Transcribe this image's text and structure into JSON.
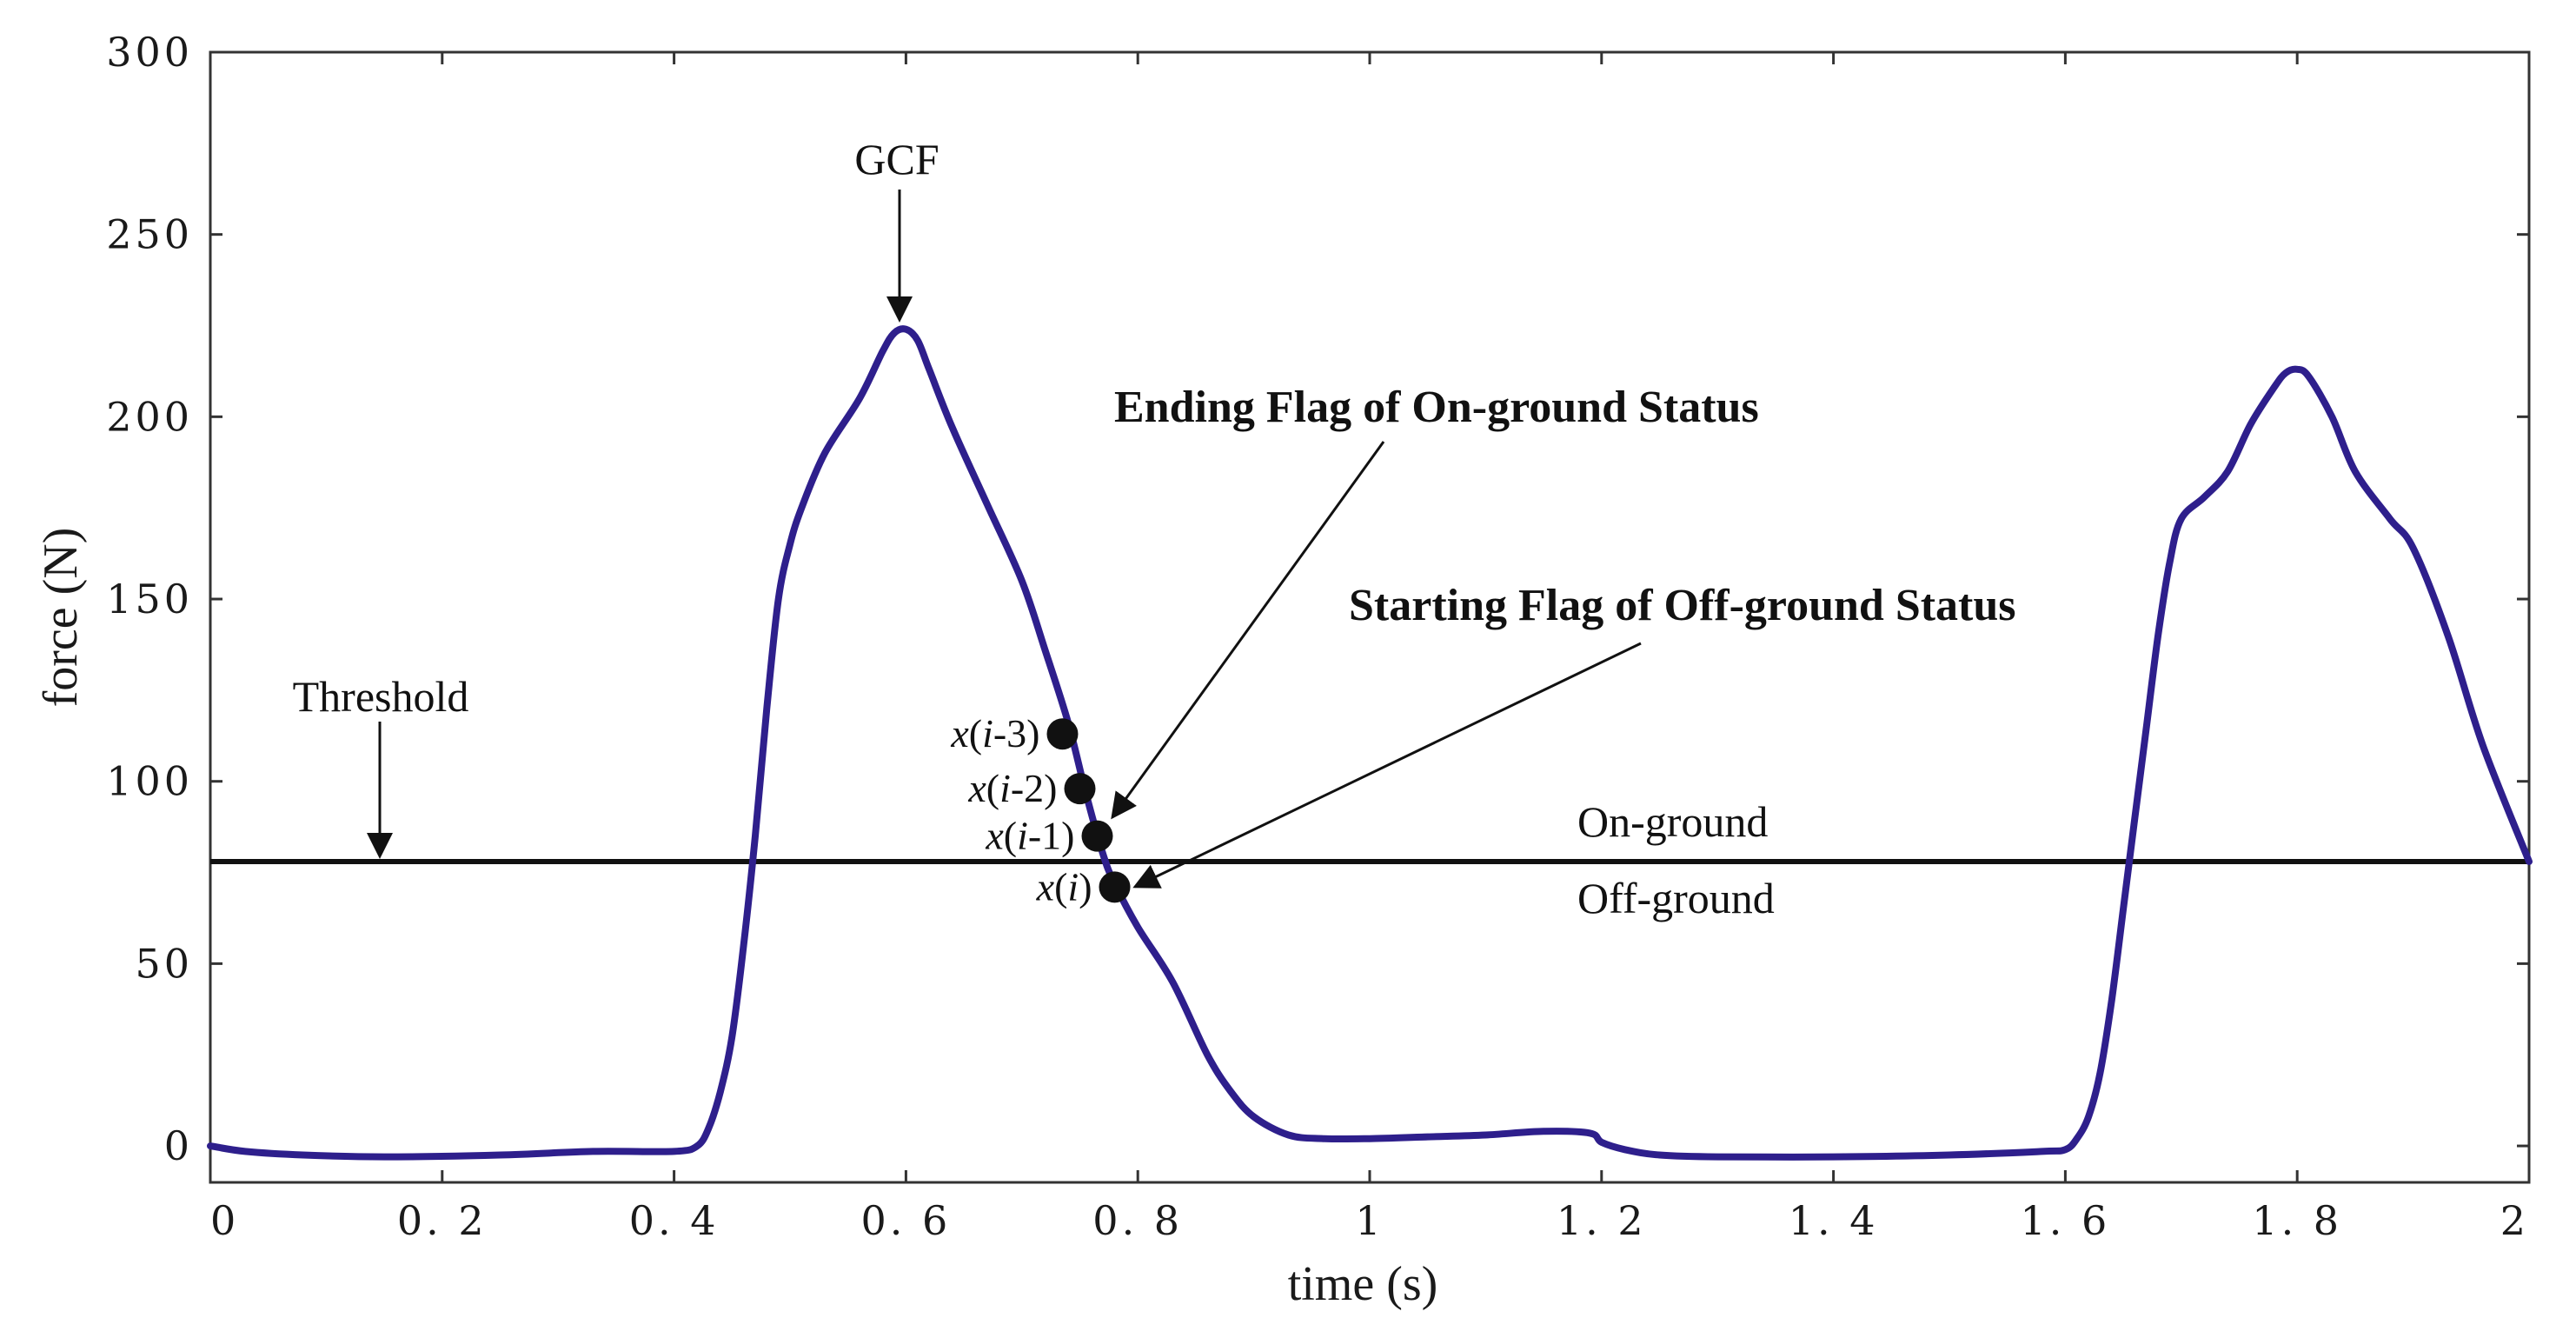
{
  "chart_data": {
    "type": "line",
    "title": "",
    "xlabel": "time (s)",
    "ylabel": "force (N)",
    "xlim": [
      0,
      2
    ],
    "ylim": [
      -10,
      300
    ],
    "xticks": [
      0,
      0.2,
      0.4,
      0.6,
      0.8,
      1,
      1.2,
      1.4,
      1.6,
      1.8,
      2
    ],
    "xtick_labels": [
      "0",
      "0. 2",
      "0. 4",
      "0. 6",
      "0. 8",
      "1",
      "1. 2",
      "1. 4",
      "1. 6",
      "1. 8",
      "2"
    ],
    "yticks": [
      0,
      50,
      100,
      150,
      200,
      250,
      300
    ],
    "ytick_labels": [
      "0",
      "50",
      "100",
      "150",
      "200",
      "250",
      "300"
    ],
    "grid": false,
    "series": [
      {
        "name": "GCF",
        "color": "#2e1f8c",
        "x": [
          0,
          0.03,
          0.08,
          0.15,
          0.25,
          0.33,
          0.4,
          0.42,
          0.43,
          0.44,
          0.45,
          0.46,
          0.47,
          0.48,
          0.49,
          0.5,
          0.51,
          0.53,
          0.56,
          0.58,
          0.59,
          0.6,
          0.61,
          0.62,
          0.64,
          0.67,
          0.7,
          0.72,
          0.74,
          0.755,
          0.77,
          0.78,
          0.8,
          0.83,
          0.86,
          0.88,
          0.9,
          0.93,
          0.96,
          1.0,
          1.05,
          1.1,
          1.15,
          1.19,
          1.2,
          1.22,
          1.25,
          1.3,
          1.4,
          1.5,
          1.58,
          1.6,
          1.61,
          1.62,
          1.63,
          1.64,
          1.65,
          1.66,
          1.67,
          1.68,
          1.69,
          1.7,
          1.72,
          1.74,
          1.76,
          1.78,
          1.79,
          1.8,
          1.81,
          1.83,
          1.85,
          1.88,
          1.9,
          1.93,
          1.96,
          2.0
        ],
        "y": [
          0,
          -1.5,
          -2.5,
          -3,
          -2.5,
          -1.5,
          -1.5,
          0,
          5,
          15,
          30,
          55,
          85,
          120,
          150,
          165,
          175,
          190,
          205,
          218,
          223,
          224,
          221,
          213,
          197,
          176,
          155,
          136,
          116,
          97,
          80,
          72,
          60,
          45,
          25,
          15,
          8,
          3,
          2,
          2,
          2.5,
          3,
          4,
          3.5,
          1,
          -1,
          -2.5,
          -3,
          -3,
          -2.5,
          -1.5,
          -1,
          2,
          8,
          20,
          40,
          65,
          90,
          115,
          140,
          160,
          172,
          178,
          185,
          198,
          208,
          212,
          213,
          211,
          200,
          185,
          172,
          164,
          140,
          110,
          78
        ]
      }
    ],
    "threshold": {
      "label": "Threshold",
      "value": 78
    },
    "flag_points": [
      {
        "prefix": "x(",
        "index": "i",
        "suffix": "-3)",
        "x": 0.735,
        "y": 113
      },
      {
        "prefix": "x(",
        "index": "i",
        "suffix": "-2)",
        "x": 0.75,
        "y": 98
      },
      {
        "prefix": "x(",
        "index": "i",
        "suffix": "-1)",
        "x": 0.765,
        "y": 85
      },
      {
        "prefix": "x(",
        "index": "i",
        "suffix": ")",
        "x": 0.78,
        "y": 71
      }
    ],
    "annotations": {
      "gcf": "GCF",
      "ending_flag": "Ending Flag of On-ground Status",
      "starting_flag": "Starting Flag of Off-ground Status",
      "on_ground": "On-ground",
      "off_ground": "Off-ground"
    }
  }
}
